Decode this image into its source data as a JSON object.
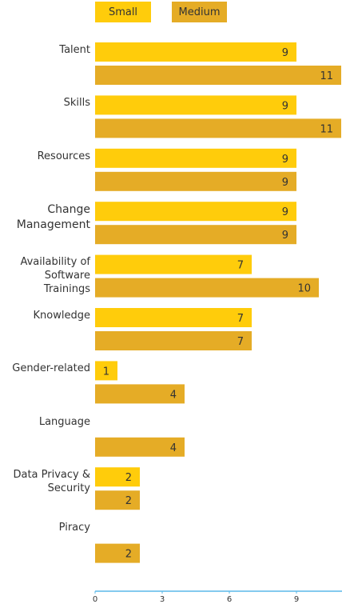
{
  "legend": [
    {
      "name": "Small",
      "color": "#FFCC0B"
    },
    {
      "name": "Medium",
      "color": "#E5AC26"
    }
  ],
  "chart_data": {
    "type": "bar",
    "orientation": "horizontal",
    "categories": [
      "Talent",
      "Skills",
      "Resources",
      "Change Management",
      "Availability of Software Trainings",
      "Knowledge",
      "Gender-related",
      "Language",
      "Data Privacy & Security",
      "Piracy"
    ],
    "series": [
      {
        "name": "Small",
        "color": "#FFCC0B",
        "values": [
          9,
          9,
          9,
          9,
          7,
          7,
          1,
          null,
          2,
          null
        ]
      },
      {
        "name": "Medium",
        "color": "#E5AC26",
        "values": [
          11,
          11,
          9,
          9,
          10,
          7,
          4,
          4,
          2,
          2
        ]
      }
    ],
    "xticks": [
      0,
      3,
      6,
      9
    ],
    "xlim": [
      0,
      11
    ],
    "axis_color": "#5BB8E8",
    "grid": false,
    "legend_position": "top-left"
  }
}
